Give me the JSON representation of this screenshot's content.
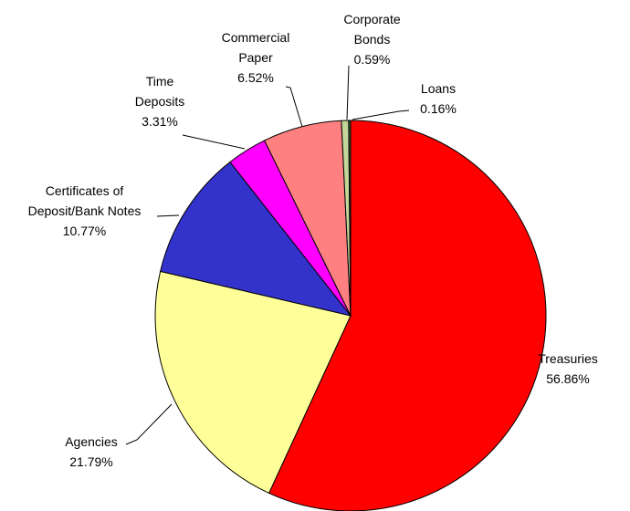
{
  "chart_data": {
    "type": "pie",
    "categories": [
      "Treasuries",
      "Agencies",
      "Certificates of Deposit/Bank Notes",
      "Time Deposits",
      "Commercial Paper",
      "Corporate Bonds",
      "Loans"
    ],
    "values": [
      56.86,
      21.79,
      10.77,
      3.31,
      6.52,
      0.59,
      0.16
    ],
    "value_labels": [
      "56.86%",
      "21.79%",
      "10.77%",
      "3.31%",
      "6.52%",
      "0.59%",
      "0.16%"
    ],
    "colors": [
      "#ff0000",
      "#ffff99",
      "#3333cc",
      "#ff00ff",
      "#ff8080",
      "#c4d79b",
      "#3a6b35"
    ]
  }
}
